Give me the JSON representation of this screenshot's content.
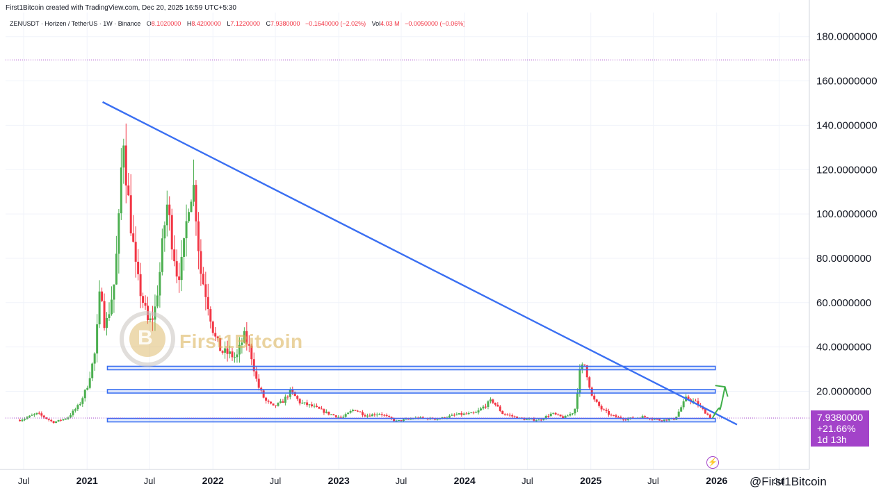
{
  "header": {
    "created_line": "First1Bitcoin created with TradingView.com, Dec 20, 2025 16:59 UTC+5:30",
    "symbol": "ZENUSDT · Horizen / TetherUS · 1W · Binance",
    "open_label": "O",
    "open_value": "8.1020000",
    "high_label": "H",
    "high_value": "8.4200000",
    "low_label": "L",
    "low_value": "7.1220000",
    "close_label": "C",
    "close_value": "7.9380000",
    "change_value": "−0.1640000 (−2.02%)",
    "vol_label": "Vol",
    "vol_value": "4.03 M",
    "vol_change": "−0.0050000 (−0.06%)"
  },
  "price_label": {
    "price": "7.9380000",
    "change": "+21.66%",
    "countdown": "1d 13h"
  },
  "watermark": {
    "brand": "First1Bitcoin",
    "logo_letter": "B",
    "footer": "@First1Bitcoin"
  },
  "colors": {
    "up": "#4caf50",
    "down": "#f23645",
    "trendline": "#3a6ff2",
    "label_bg": "#a343c9",
    "arrow": "#3fae49"
  },
  "chart_data": {
    "type": "candlestick",
    "ylim": [
      -20,
      190
    ],
    "y_ticks": [
      "180.0000000",
      "160.0000000",
      "140.0000000",
      "120.0000000",
      "100.0000000",
      "80.0000000",
      "60.0000000",
      "40.0000000",
      "20.0000000"
    ],
    "y_tick_values": [
      180,
      160,
      140,
      120,
      100,
      80,
      60,
      40,
      20
    ],
    "x_ticks": [
      {
        "label": "Jul",
        "date": "2020-07-01"
      },
      {
        "label": "2021",
        "date": "2021-01-01",
        "bold": true
      },
      {
        "label": "Jul",
        "date": "2021-07-01"
      },
      {
        "label": "2022",
        "date": "2022-01-01",
        "bold": true
      },
      {
        "label": "Jul",
        "date": "2022-07-01"
      },
      {
        "label": "2023",
        "date": "2023-01-01",
        "bold": true
      },
      {
        "label": "Jul",
        "date": "2023-07-01"
      },
      {
        "label": "2024",
        "date": "2024-01-01",
        "bold": true
      },
      {
        "label": "Jul",
        "date": "2024-07-01"
      },
      {
        "label": "2025",
        "date": "2025-01-01",
        "bold": true
      },
      {
        "label": "Jul",
        "date": "2025-07-01"
      },
      {
        "label": "2026",
        "date": "2026-01-01",
        "bold": true
      },
      {
        "label": "Jul",
        "date": "2026-07-01"
      }
    ],
    "ath_line_value": 169.5,
    "current_price": 7.938,
    "resistance_zones": [
      {
        "from_date": "2021-03-01",
        "to_date": "2025-12-28",
        "value": 30.5
      },
      {
        "from_date": "2021-03-01",
        "to_date": "2025-12-28",
        "value": 20
      },
      {
        "from_date": "2021-03-01",
        "to_date": "2025-12-28",
        "value": 7
      }
    ],
    "trendline": {
      "start_date": "2021-02-15",
      "start_value": 150.5,
      "end_date": "2026-03-01",
      "end_value": 5
    },
    "projection_arrow": [
      {
        "date": "2025-12-20",
        "value": 8
      },
      {
        "date": "2026-01-10",
        "value": 12
      },
      {
        "date": "2026-01-25",
        "value": 22
      }
    ],
    "candle_anchors": [
      {
        "date": "2020-06-20",
        "value": 7
      },
      {
        "date": "2020-08-10",
        "value": 10
      },
      {
        "date": "2020-09-25",
        "value": 6
      },
      {
        "date": "2020-11-05",
        "value": 8
      },
      {
        "date": "2020-12-10",
        "value": 14
      },
      {
        "date": "2021-01-01",
        "value": 22
      },
      {
        "date": "2021-01-25",
        "value": 38
      },
      {
        "date": "2021-02-10",
        "value": 70
      },
      {
        "date": "2021-02-22",
        "value": 48
      },
      {
        "date": "2021-03-08",
        "value": 58
      },
      {
        "date": "2021-03-22",
        "value": 70
      },
      {
        "date": "2021-04-05",
        "value": 100
      },
      {
        "date": "2021-04-15",
        "value": 140
      },
      {
        "date": "2021-04-28",
        "value": 110
      },
      {
        "date": "2021-05-12",
        "value": 90
      },
      {
        "date": "2021-05-24",
        "value": 72
      },
      {
        "date": "2021-06-10",
        "value": 62
      },
      {
        "date": "2021-06-28",
        "value": 50
      },
      {
        "date": "2021-07-15",
        "value": 55
      },
      {
        "date": "2021-08-01",
        "value": 75
      },
      {
        "date": "2021-08-20",
        "value": 105
      },
      {
        "date": "2021-09-05",
        "value": 88
      },
      {
        "date": "2021-09-20",
        "value": 72
      },
      {
        "date": "2021-10-05",
        "value": 78
      },
      {
        "date": "2021-10-25",
        "value": 110
      },
      {
        "date": "2021-11-08",
        "value": 112
      },
      {
        "date": "2021-11-25",
        "value": 75
      },
      {
        "date": "2021-12-15",
        "value": 62
      },
      {
        "date": "2022-01-05",
        "value": 45
      },
      {
        "date": "2022-01-25",
        "value": 38
      },
      {
        "date": "2022-02-15",
        "value": 37
      },
      {
        "date": "2022-03-10",
        "value": 35
      },
      {
        "date": "2022-04-01",
        "value": 45
      },
      {
        "date": "2022-04-20",
        "value": 38
      },
      {
        "date": "2022-05-10",
        "value": 23
      },
      {
        "date": "2022-06-01",
        "value": 16
      },
      {
        "date": "2022-06-25",
        "value": 13
      },
      {
        "date": "2022-07-20",
        "value": 15
      },
      {
        "date": "2022-08-15",
        "value": 20
      },
      {
        "date": "2022-09-10",
        "value": 15
      },
      {
        "date": "2022-10-20",
        "value": 13
      },
      {
        "date": "2022-12-01",
        "value": 10
      },
      {
        "date": "2023-01-10",
        "value": 8
      },
      {
        "date": "2023-02-15",
        "value": 12
      },
      {
        "date": "2023-03-20",
        "value": 9
      },
      {
        "date": "2023-05-01",
        "value": 10
      },
      {
        "date": "2023-06-15",
        "value": 6.5
      },
      {
        "date": "2023-08-15",
        "value": 8
      },
      {
        "date": "2023-10-15",
        "value": 7.5
      },
      {
        "date": "2023-12-10",
        "value": 9.5
      },
      {
        "date": "2024-02-01",
        "value": 10
      },
      {
        "date": "2024-03-20",
        "value": 16
      },
      {
        "date": "2024-04-20",
        "value": 10
      },
      {
        "date": "2024-06-15",
        "value": 7.5
      },
      {
        "date": "2024-08-05",
        "value": 7
      },
      {
        "date": "2024-09-10",
        "value": 10
      },
      {
        "date": "2024-10-15",
        "value": 8
      },
      {
        "date": "2024-11-15",
        "value": 11
      },
      {
        "date": "2024-12-01",
        "value": 30
      },
      {
        "date": "2024-12-15",
        "value": 32
      },
      {
        "date": "2025-01-05",
        "value": 17
      },
      {
        "date": "2025-02-01",
        "value": 12
      },
      {
        "date": "2025-03-01",
        "value": 9
      },
      {
        "date": "2025-04-10",
        "value": 7.5
      },
      {
        "date": "2025-06-01",
        "value": 8.5
      },
      {
        "date": "2025-07-20",
        "value": 7
      },
      {
        "date": "2025-09-01",
        "value": 7.5
      },
      {
        "date": "2025-10-05",
        "value": 17
      },
      {
        "date": "2025-11-01",
        "value": 15
      },
      {
        "date": "2025-12-15",
        "value": 8
      }
    ]
  }
}
